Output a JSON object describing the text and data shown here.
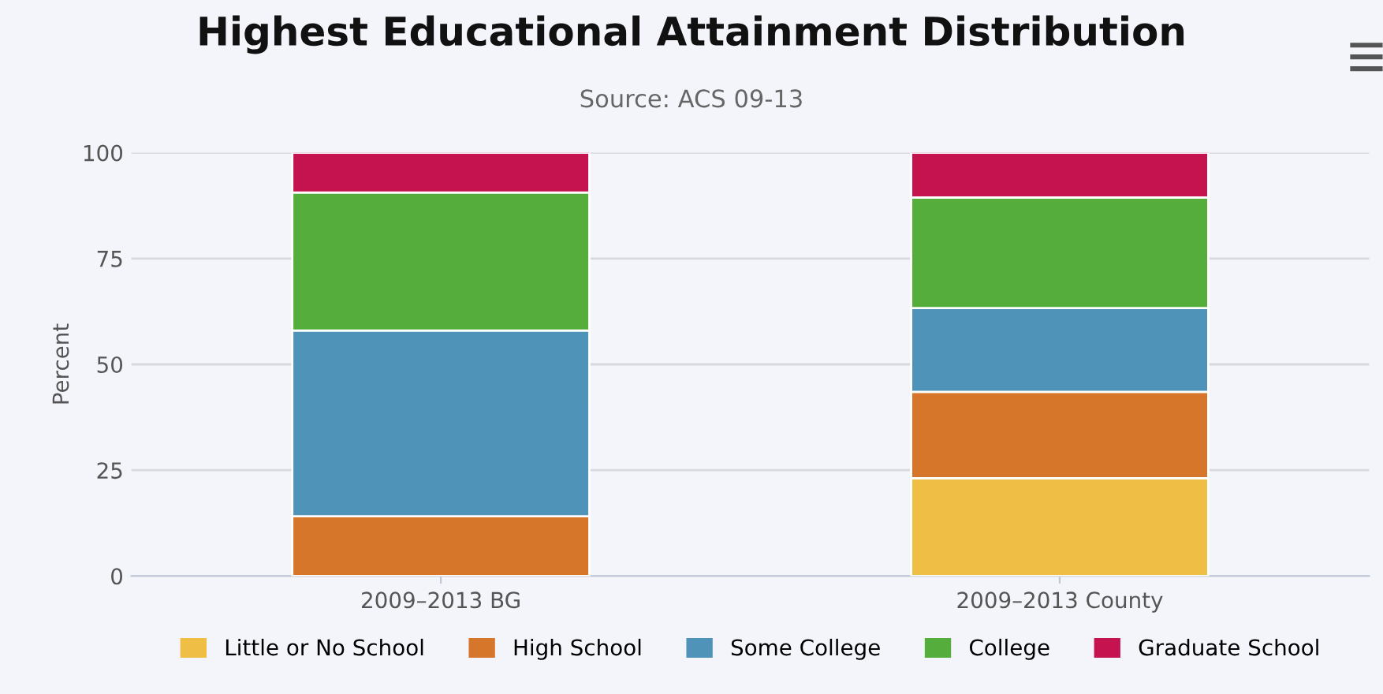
{
  "chart_data": {
    "type": "bar",
    "title": "Highest Educational Attainment Distribution",
    "subtitle": "Source: ACS 09-13",
    "ylabel": "Percent",
    "categories": [
      "2009–2013 BG",
      "2009–2013 County"
    ],
    "stacked": true,
    "series": [
      {
        "name": "Little or No School",
        "color": "#efbe44",
        "values": [
          0,
          23.1
        ]
      },
      {
        "name": "High School",
        "color": "#d6762a",
        "values": [
          14.1,
          20.4
        ]
      },
      {
        "name": "Some College",
        "color": "#5093b8",
        "values": [
          43.9,
          19.8
        ]
      },
      {
        "name": "College",
        "color": "#55ad3c",
        "values": [
          32.6,
          26.1
        ]
      },
      {
        "name": "Graduate School",
        "color": "#c5134f",
        "values": [
          9.4,
          10.6
        ]
      }
    ],
    "ylim": [
      0,
      100
    ],
    "yticks": [
      0,
      25,
      50,
      75,
      100
    ],
    "grid": "y",
    "legend": "bottom"
  }
}
